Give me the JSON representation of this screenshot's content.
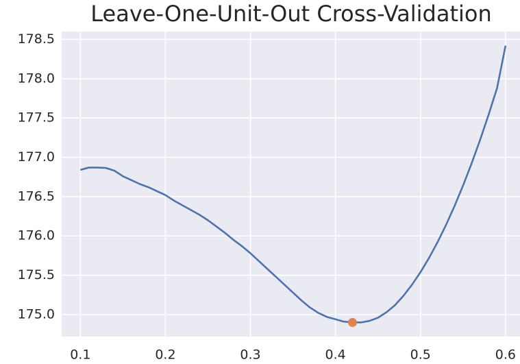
{
  "chart_data": {
    "type": "line",
    "title": "Leave-One-Unit-Out Cross-Validation",
    "x": [
      0.1,
      0.11,
      0.12,
      0.13,
      0.14,
      0.15,
      0.16,
      0.17,
      0.18,
      0.19,
      0.2,
      0.21,
      0.22,
      0.23,
      0.24,
      0.25,
      0.26,
      0.27,
      0.28,
      0.29,
      0.3,
      0.31,
      0.32,
      0.33,
      0.34,
      0.35,
      0.36,
      0.37,
      0.38,
      0.39,
      0.4,
      0.41,
      0.42,
      0.43,
      0.44,
      0.45,
      0.46,
      0.47,
      0.48,
      0.49,
      0.5,
      0.51,
      0.52,
      0.53,
      0.54,
      0.55,
      0.56,
      0.57,
      0.58,
      0.59,
      0.6
    ],
    "series": [
      {
        "color": "#4c72b0",
        "values": [
          176.84,
          176.87,
          176.87,
          176.865,
          176.83,
          176.76,
          176.71,
          176.66,
          176.62,
          176.57,
          176.52,
          176.45,
          176.39,
          176.33,
          176.27,
          176.2,
          176.12,
          176.04,
          175.95,
          175.87,
          175.78,
          175.68,
          175.58,
          175.48,
          175.38,
          175.28,
          175.18,
          175.09,
          175.02,
          174.97,
          174.94,
          174.91,
          174.9,
          174.9,
          174.92,
          174.96,
          175.03,
          175.12,
          175.24,
          175.38,
          175.54,
          175.72,
          175.92,
          176.14,
          176.38,
          176.64,
          176.92,
          177.22,
          177.54,
          177.88,
          178.42
        ]
      }
    ],
    "points": [
      {
        "x": 0.42,
        "y": 174.9,
        "color": "#dd8452"
      }
    ],
    "xlim": [
      0.078,
      0.617
    ],
    "xticks": [
      0.1,
      0.2,
      0.3,
      0.4,
      0.5,
      0.6
    ],
    "ylim": [
      174.72,
      178.6
    ],
    "yticks": [
      {
        "value": 175.0,
        "label": "175.0"
      },
      175.5,
      {
        "value": 176.0,
        "label": "176.0"
      },
      176.5,
      {
        "value": 177.0,
        "label": "177.0"
      },
      177.5,
      {
        "value": 178.0,
        "label": "178.0"
      },
      178.5
    ],
    "grid": true,
    "background": "#eaeaf2"
  }
}
